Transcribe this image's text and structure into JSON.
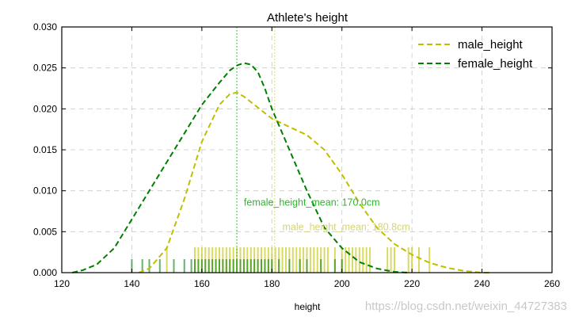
{
  "chart_data": {
    "type": "line",
    "title": "Athlete's height",
    "xlabel": "height",
    "ylabel": "",
    "xlim": [
      120,
      260
    ],
    "ylim": [
      0,
      0.03
    ],
    "xticks": [
      "120",
      "140",
      "160",
      "180",
      "200",
      "220",
      "240",
      "260"
    ],
    "yticks": [
      "0.000",
      "0.005",
      "0.010",
      "0.015",
      "0.020",
      "0.025",
      "0.030"
    ],
    "xtick_values": [
      120,
      140,
      160,
      180,
      200,
      220,
      240,
      260
    ],
    "ytick_values": [
      0,
      0.005,
      0.01,
      0.015,
      0.02,
      0.025,
      0.03
    ],
    "grid": true,
    "legend_position": "top-right",
    "series": [
      {
        "name": "male_height",
        "color": "#bfbf00",
        "style": "dashed",
        "x": [
          142,
          145,
          150,
          155,
          160,
          165,
          168,
          170,
          172,
          175,
          180,
          185,
          190,
          195,
          200,
          205,
          210,
          215,
          220,
          225,
          230,
          235,
          240,
          243
        ],
        "y": [
          0.0,
          0.0005,
          0.003,
          0.009,
          0.016,
          0.0205,
          0.0218,
          0.022,
          0.0215,
          0.0205,
          0.0188,
          0.0178,
          0.0168,
          0.015,
          0.012,
          0.0085,
          0.0055,
          0.0035,
          0.0022,
          0.0012,
          0.0006,
          0.0002,
          0.0,
          0.0
        ]
      },
      {
        "name": "female_height",
        "color": "#008000",
        "style": "dashed",
        "x": [
          123,
          126,
          130,
          135,
          140,
          145,
          150,
          155,
          160,
          165,
          168,
          170,
          172,
          174,
          176,
          178,
          180,
          185,
          190,
          195,
          200,
          205,
          210,
          215,
          219
        ],
        "y": [
          0.0,
          0.0003,
          0.001,
          0.003,
          0.0065,
          0.01,
          0.0135,
          0.017,
          0.0205,
          0.0232,
          0.0247,
          0.0253,
          0.0256,
          0.0254,
          0.0245,
          0.0225,
          0.02,
          0.015,
          0.01,
          0.0055,
          0.003,
          0.0013,
          0.0005,
          0.0001,
          0.0
        ]
      }
    ],
    "mean_lines": [
      {
        "series": "female_height",
        "value": 170.0,
        "label": "female_height_mean: 170.0cm",
        "color": "#2eb82e",
        "label_x": 172,
        "label_y": 0.0082
      },
      {
        "series": "male_height",
        "value": 180.8,
        "label": "male_height_mean: 180.8cm",
        "color": "#d4d47a",
        "label_x": 183,
        "label_y": 0.0052
      }
    ],
    "rug": [
      {
        "series": "male_height",
        "color": "#bfbf00",
        "values": [
          150,
          158,
          159,
          160,
          161,
          162,
          163,
          164,
          165,
          166,
          167,
          168,
          169,
          170,
          171,
          172,
          173,
          174,
          175,
          176,
          177,
          178,
          179,
          180,
          181,
          182,
          183,
          184,
          185,
          186,
          187,
          188,
          189,
          190,
          191,
          192,
          193,
          194,
          195,
          196,
          198,
          200,
          201,
          202,
          203,
          204,
          205,
          206,
          207,
          208,
          213,
          214,
          215,
          219,
          220,
          222,
          225
        ]
      },
      {
        "series": "female_height",
        "color": "#008000",
        "values": [
          140,
          143,
          145,
          148,
          152,
          155,
          157,
          158,
          159,
          160,
          161,
          162,
          163,
          164,
          165,
          166,
          167,
          168,
          169,
          170,
          171,
          172,
          173,
          174,
          175,
          176,
          177,
          178,
          179,
          180,
          182,
          185,
          188,
          190,
          194,
          198,
          200
        ]
      }
    ]
  },
  "watermark": "https://blog.csdn.net/weixin_44727383"
}
